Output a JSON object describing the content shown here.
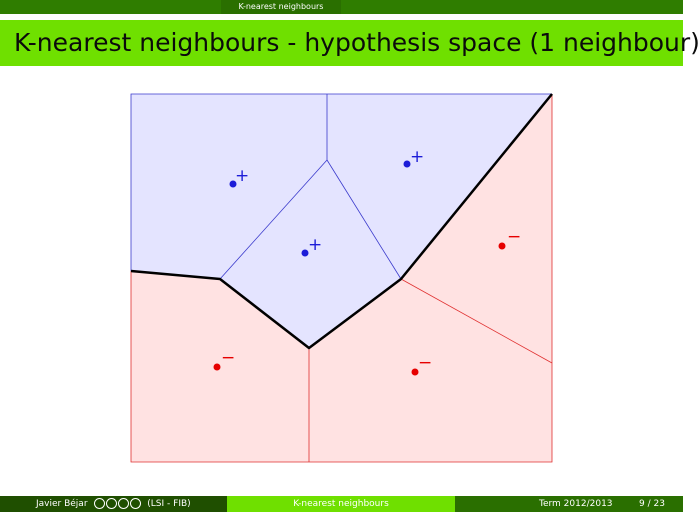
{
  "header": {
    "section": "K-nearest neighbours",
    "title": "K-nearest neighbours - hypothesis space (1 neighbour)"
  },
  "figure": {
    "plus_label": "+",
    "minus_label": "−",
    "colors": {
      "positive_region": "#e4e4ff",
      "positive_edge": "#3a3acc",
      "positive_point": "#1c1cd8",
      "negative_region": "#ffe2e2",
      "negative_edge": "#e03030",
      "negative_point": "#e60000",
      "boundary": "#000000"
    }
  },
  "footer": {
    "author": "Javier Béjar",
    "license_icons": [
      "cc-icon",
      "by-icon",
      "nc-icon",
      "sa-icon"
    ],
    "affiliation": "(LSI - FIB)",
    "section": "K-nearest neighbours",
    "term": "Term 2012/2013",
    "pages": "9 / 23"
  }
}
